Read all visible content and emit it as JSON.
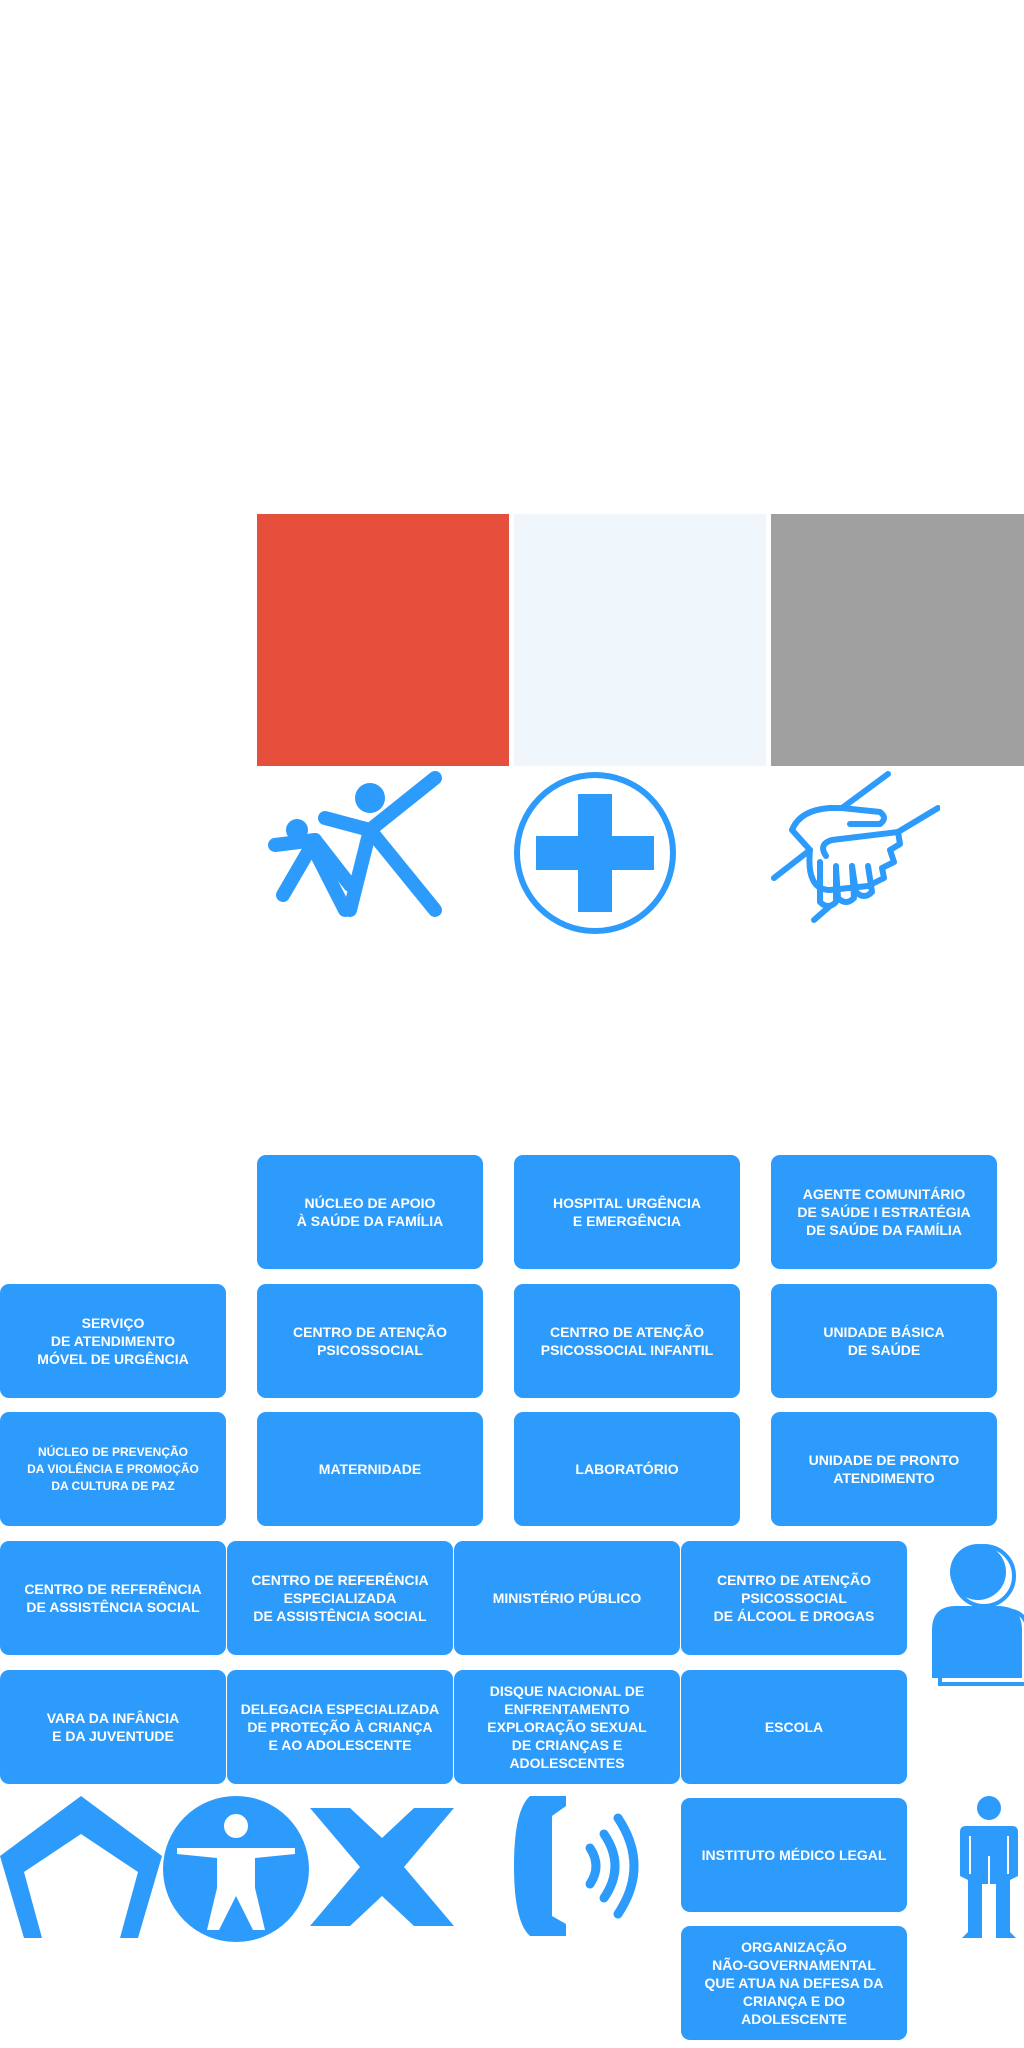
{
  "palette": {
    "red": "#e74f3d",
    "pale_blue": "#eff7fd",
    "gray": "#a0a0a0",
    "blue": "#2d9bfb"
  },
  "icons": [
    "children-playing-icon",
    "medical-cross-icon",
    "handshake-icon",
    "user-avatar-icon",
    "house-icon",
    "child-circle-icon",
    "x-cross-icon",
    "phone-call-icon",
    "person-standing-icon"
  ],
  "tiles": {
    "nucleo_apoio": "NÚCLEO DE APOIO\nÀ SAÚDE DA FAMÍLIA",
    "hospital": "HOSPITAL URGÊNCIA\nE EMERGÊNCIA",
    "agente": "AGENTE COMUNITÁRIO\nDE SAÚDE I ESTRATÉGIA\nDE SAÚDE DA FAMÍLIA",
    "samu": "SERVIÇO\nDE ATENDIMENTO\nMÓVEL DE URGÊNCIA",
    "caps": "CENTRO DE ATENÇÃO\nPSICOSSOCIAL",
    "capsi": "CENTRO DE ATENÇÃO\nPSICOSSOCIAL INFANTIL",
    "ubs": "UNIDADE BÁSICA\nDE SAÚDE",
    "nucleo_prevencao": "NÚCLEO DE PREVENÇÃO\nDA VIOLÊNCIA E PROMOÇÃO\nDA CULTURA DE PAZ",
    "maternidade": "MATERNIDADE",
    "laboratorio": "LABORATÓRIO",
    "upa": "UNIDADE DE PRONTO\nATENDIMENTO",
    "cras": "CENTRO DE REFERÊNCIA\nDE ASSISTÊNCIA SOCIAL",
    "creas": "CENTRO DE REFERÊNCIA\nESPECIALIZADA\nDE ASSISTÊNCIA SOCIAL",
    "ministerio": "MINISTÉRIO PÚBLICO",
    "capsad": "CENTRO DE ATENÇÃO\nPSICOSSOCIAL\nDE ÁLCOOL E DROGAS",
    "vara": "VARA DA INFÂNCIA\nE DA JUVENTUDE",
    "delegacia": "DELEGACIA ESPECIALIZADA\nDE PROTEÇÃO À CRIANÇA\nE AO ADOLESCENTE",
    "disque": "DISQUE NACIONAL DE\nENFRENTAMENTO\nEXPLORAÇÃO SEXUAL\nDE CRIANÇAS E ADOLESCENTES",
    "escola": "ESCOLA",
    "iml": "INSTITUTO MÉDICO LEGAL",
    "ong": "ORGANIZAÇÃO\nNÃO-GOVERNAMENTAL\nQUE ATUA NA DEFESA DA\nCRIANÇA E DO ADOLESCENTE"
  }
}
